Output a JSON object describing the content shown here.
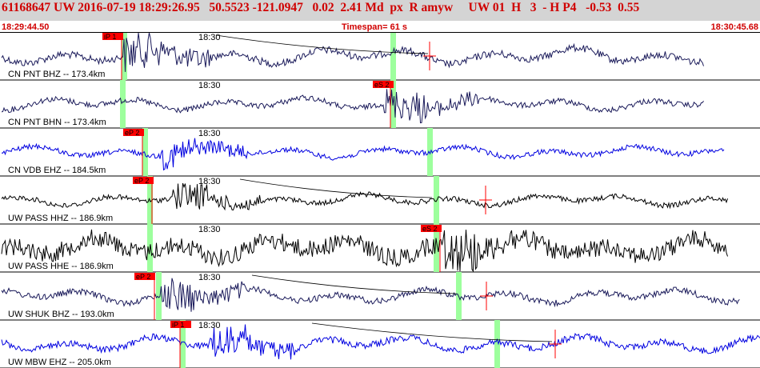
{
  "header": {
    "title": "61168647 UW 2016-07-19 18:29:26.95   50.5523 -121.0947   0.02  2.41 Md  px  R amyw     UW 01  H   3  - H P4   -0.53  0.55",
    "start_time": "18:29:44.50",
    "timespan": "Timespan=  61 s",
    "end_time": "18:30:45.68",
    "background": "#d4d4d4",
    "text_color": "#d00000"
  },
  "colors": {
    "pick_flag": "#ff0000",
    "pick_window": "#9dff9d",
    "trace_navy": "#1a1a5a",
    "trace_blue": "#0000e0",
    "trace_black": "#000000"
  },
  "traces": [
    {
      "label": "CN PNT BHZ -- 173.4km",
      "time_mark": "18:30",
      "pick": {
        "label": "iP 1"
      },
      "color": "navy"
    },
    {
      "label": "CN PNT BHN -- 173.4km",
      "time_mark": "18:30",
      "pick": {
        "label": "eS 2"
      },
      "color": "navy"
    },
    {
      "label": "CN VDB EHZ -- 184.5km",
      "time_mark": "18:30",
      "pick": {
        "label": "eP 2"
      },
      "color": "blue"
    },
    {
      "label": "UW PASS HHZ -- 186.9km",
      "time_mark": "18:30",
      "pick": {
        "label": "eP 2"
      },
      "color": "black"
    },
    {
      "label": "UW PASS HHE -- 186.9km",
      "time_mark": "18:30",
      "pick": {
        "label": "eS 2"
      },
      "color": "black"
    },
    {
      "label": "UW SHUK BHZ -- 193.0km",
      "time_mark": "18:30",
      "pick": {
        "label": "eP 2"
      },
      "color": "navy"
    },
    {
      "label": "UW MBW EHZ -- 205.0km",
      "time_mark": "18:30",
      "pick": {
        "label": "iP 1"
      },
      "color": "blue"
    }
  ]
}
